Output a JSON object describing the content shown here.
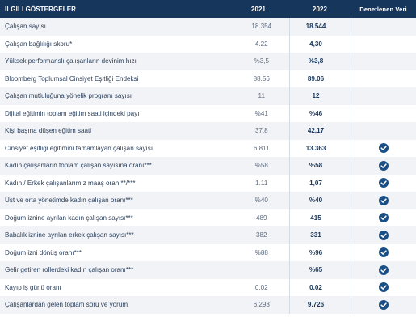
{
  "headers": {
    "indicators": "İLGİLİ GÖSTERGELER",
    "year1": "2021",
    "year2": "2022",
    "verified": "Denetlenen Veri"
  },
  "rows": [
    {
      "label": "Çalışan sayısı",
      "y2021": "18.354",
      "y2022": "18.544",
      "verified": false
    },
    {
      "label": "Çalışan bağlılığı skoru*",
      "y2021": "4.22",
      "y2022": "4,30",
      "verified": false
    },
    {
      "label": "Yüksek performanslı çalışanların devinim hızı",
      "y2021": "%3,5",
      "y2022": "%3,8",
      "verified": false
    },
    {
      "label": "Bloomberg Toplumsal Cinsiyet Eşitliği Endeksi",
      "y2021": "88.56",
      "y2022": "89.06",
      "verified": false
    },
    {
      "label": "Çalışan mutluluğuna yönelik program sayısı",
      "y2021": "11",
      "y2022": "12",
      "verified": false
    },
    {
      "label": "Dijital eğitimin toplam eğitim saati içindeki payı",
      "y2021": "%41",
      "y2022": "%46",
      "verified": false
    },
    {
      "label": "Kişi başına düşen eğitim saati",
      "y2021": "37,8",
      "y2022": "42,17",
      "verified": false
    },
    {
      "label": "Cinsiyet eşitliği eğitimini tamamlayan çalışan sayısı",
      "y2021": "6.811",
      "y2022": "13.363",
      "verified": true
    },
    {
      "label": "Kadın çalışanların toplam çalışan sayısına oranı***",
      "y2021": "%58",
      "y2022": "%58",
      "verified": true
    },
    {
      "label": "Kadın / Erkek çalışanlarımız maaş oranı**/***",
      "y2021": "1.11",
      "y2022": "1,07",
      "verified": true
    },
    {
      "label": "Üst ve orta yönetimde kadın çalışan oranı***",
      "y2021": "%40",
      "y2022": "%40",
      "verified": true
    },
    {
      "label": "Doğum iznine ayrılan kadın çalışan sayısı***",
      "y2021": "489",
      "y2022": "415",
      "verified": true
    },
    {
      "label": "Babalık iznine ayrılan erkek çalışan sayısı***",
      "y2021": "382",
      "y2022": "331",
      "verified": true
    },
    {
      "label": "Doğum izni dönüş oranı***",
      "y2021": "%88",
      "y2022": "%96",
      "verified": true
    },
    {
      "label": "Gelir getiren rollerdeki kadın çalışan oranı***",
      "y2021": "",
      "y2022": "%65",
      "verified": true
    },
    {
      "label": "Kayıp iş günü oranı",
      "y2021": "0.02",
      "y2022": "0.02",
      "verified": true
    },
    {
      "label": "Çalışanlardan gelen toplam soru ve yorum",
      "y2021": "6.293",
      "y2022": "9.726",
      "verified": true
    }
  ],
  "colors": {
    "header_bg": "#17365c",
    "check_bg": "#1a4f86"
  },
  "icons": {
    "verified": "check-circle-icon"
  }
}
